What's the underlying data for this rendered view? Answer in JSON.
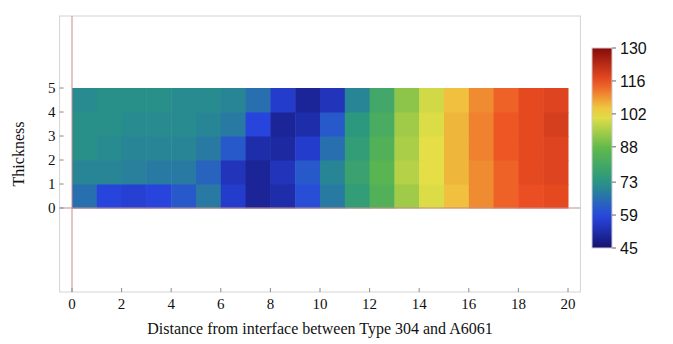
{
  "chart_data": {
    "type": "heatmap",
    "x_label": "Distance from interface between Type 304 and A6061",
    "y_label": "Thickness",
    "xlim": [
      -0.5,
      20.5
    ],
    "ylim": [
      -3.5,
      8
    ],
    "xticks": [
      0,
      2,
      4,
      6,
      8,
      10,
      12,
      14,
      16,
      18,
      20
    ],
    "yticks": [
      0,
      1,
      2,
      3,
      4,
      5
    ],
    "grid": false,
    "x_edges": [
      0,
      1,
      2,
      3,
      4,
      5,
      6,
      7,
      8,
      9,
      10,
      11,
      12,
      13,
      14,
      15,
      16,
      17,
      18,
      19,
      20
    ],
    "y_edges": [
      0,
      1,
      2,
      3,
      4,
      5
    ],
    "cells": [
      [
        66,
        58,
        57,
        58,
        62,
        68,
        56,
        50,
        52,
        60,
        68,
        76,
        84,
        94,
        100,
        105,
        110,
        114,
        116,
        117
      ],
      [
        70,
        70,
        69,
        68,
        68,
        64,
        54,
        50,
        54,
        62,
        70,
        78,
        86,
        96,
        101,
        106,
        110,
        114,
        117,
        118
      ],
      [
        72,
        71,
        70,
        70,
        70,
        68,
        62,
        52,
        51,
        56,
        66,
        76,
        84,
        95,
        101,
        106,
        111,
        115,
        117,
        118
      ],
      [
        72,
        72,
        71,
        71,
        71,
        70,
        68,
        58,
        50,
        52,
        62,
        74,
        82,
        94,
        100,
        106,
        111,
        115,
        117,
        119
      ],
      [
        71,
        72,
        72,
        72,
        71,
        71,
        70,
        66,
        56,
        50,
        54,
        70,
        80,
        92,
        99,
        105,
        110,
        114,
        117,
        118
      ]
    ],
    "colorbar_range": [
      45,
      130
    ],
    "colorbar_ticks": [
      45,
      59,
      73,
      88,
      102,
      116,
      130
    ]
  }
}
